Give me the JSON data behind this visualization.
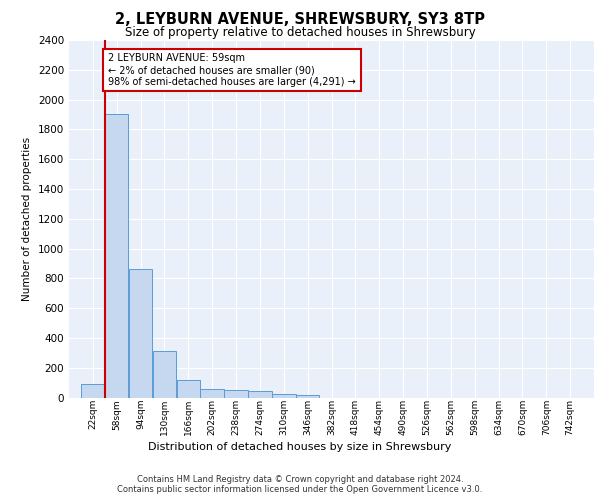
{
  "title": "2, LEYBURN AVENUE, SHREWSBURY, SY3 8TP",
  "subtitle": "Size of property relative to detached houses in Shrewsbury",
  "xlabel": "Distribution of detached houses by size in Shrewsbury",
  "ylabel": "Number of detached properties",
  "bar_color": "#c5d8f0",
  "bar_edge_color": "#5b9bd5",
  "background_color": "#eaf0f9",
  "grid_color": "#ffffff",
  "property_size": 59,
  "property_line_color": "#cc0000",
  "annotation_text": "2 LEYBURN AVENUE: 59sqm\n← 2% of detached houses are smaller (90)\n98% of semi-detached houses are larger (4,291) →",
  "annotation_box_color": "#cc0000",
  "bin_labels": [
    "22sqm",
    "58sqm",
    "94sqm",
    "130sqm",
    "166sqm",
    "202sqm",
    "238sqm",
    "274sqm",
    "310sqm",
    "346sqm",
    "382sqm",
    "418sqm",
    "454sqm",
    "490sqm",
    "526sqm",
    "562sqm",
    "598sqm",
    "634sqm",
    "670sqm",
    "706sqm",
    "742sqm"
  ],
  "bin_edges": [
    22,
    58,
    94,
    130,
    166,
    202,
    238,
    274,
    310,
    346,
    382,
    418,
    454,
    490,
    526,
    562,
    598,
    634,
    670,
    706,
    742
  ],
  "bar_heights": [
    90,
    1900,
    860,
    315,
    115,
    58,
    50,
    45,
    25,
    20,
    0,
    0,
    0,
    0,
    0,
    0,
    0,
    0,
    0,
    0
  ],
  "ylim": [
    0,
    2400
  ],
  "yticks": [
    0,
    200,
    400,
    600,
    800,
    1000,
    1200,
    1400,
    1600,
    1800,
    2000,
    2200,
    2400
  ],
  "footer_line1": "Contains HM Land Registry data © Crown copyright and database right 2024.",
  "footer_line2": "Contains public sector information licensed under the Open Government Licence v3.0."
}
